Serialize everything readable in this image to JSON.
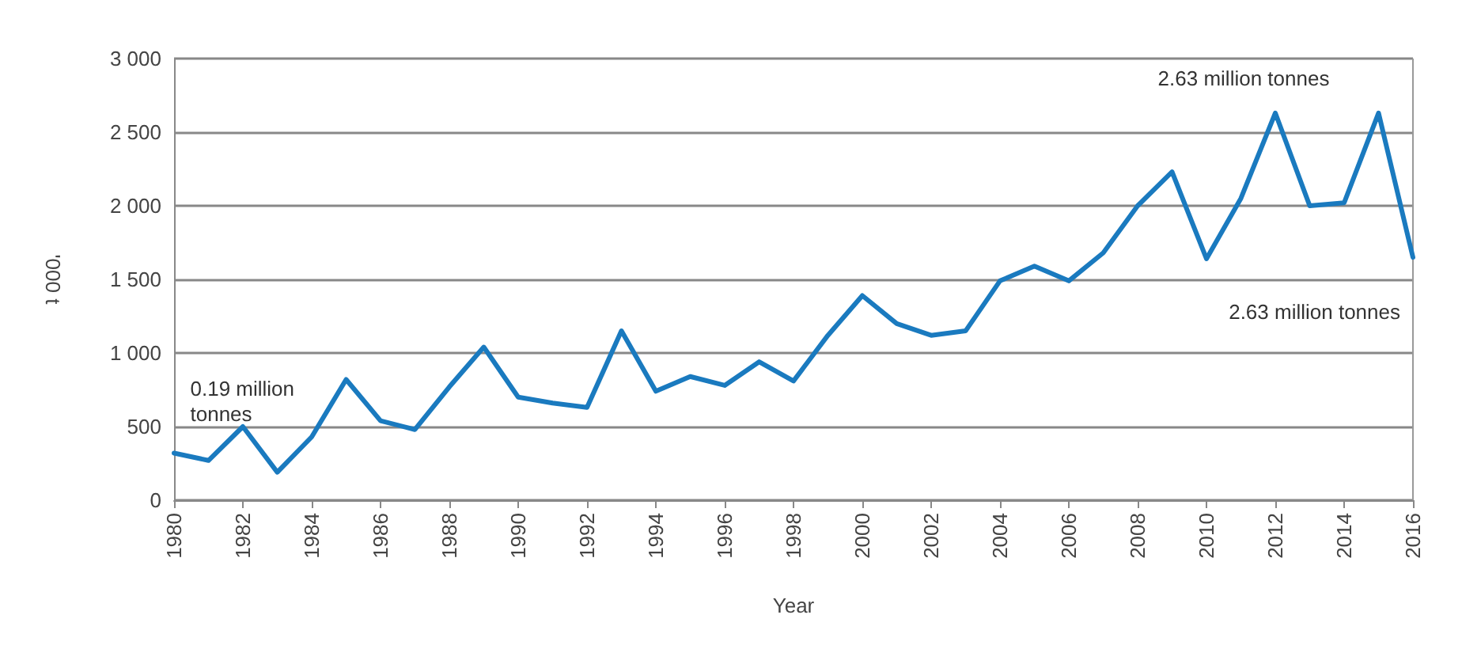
{
  "chart_data": {
    "type": "line",
    "xlabel": "Year",
    "ylabel": "'000 t",
    "x": [
      1980,
      1981,
      1982,
      1983,
      1984,
      1985,
      1986,
      1987,
      1988,
      1989,
      1990,
      1991,
      1992,
      1993,
      1994,
      1995,
      1996,
      1997,
      1998,
      1999,
      2000,
      2001,
      2002,
      2003,
      2004,
      2005,
      2006,
      2007,
      2008,
      2009,
      2010,
      2011,
      2012,
      2013,
      2014,
      2015,
      2016
    ],
    "series": [
      {
        "color": "#1a7abf",
        "values": [
          320,
          270,
          500,
          190,
          430,
          820,
          540,
          480,
          770,
          1040,
          700,
          660,
          630,
          1150,
          740,
          840,
          780,
          940,
          810,
          1120,
          1390,
          1200,
          1120,
          1150,
          1490,
          1590,
          1490,
          1680,
          2000,
          2230,
          1640,
          2050,
          2630,
          2000,
          2020,
          2630,
          1650
        ]
      }
    ],
    "xlim": [
      1980,
      2016
    ],
    "xticks": [
      1980,
      1982,
      1984,
      1986,
      1988,
      1990,
      1992,
      1994,
      1996,
      1998,
      2000,
      2002,
      2004,
      2006,
      2008,
      2010,
      2012,
      2014,
      2016
    ],
    "ylim": [
      0,
      3000
    ],
    "yticks": [
      {
        "value": 0,
        "label": "0"
      },
      {
        "value": 500,
        "label": "500"
      },
      {
        "value": 1000,
        "label": "1 000"
      },
      {
        "value": 1500,
        "label": "1 500"
      },
      {
        "value": 2000,
        "label": "2 000"
      },
      {
        "value": 2500,
        "label": "2 500"
      },
      {
        "value": 3000,
        "label": "3 000"
      }
    ],
    "annotations": [
      {
        "text": "0.19 million\ntonnes",
        "x": 1983,
        "y": 190
      },
      {
        "text": "2.63 million tonnes",
        "x": 2012,
        "y": 2630
      },
      "2.63 million tonnes"
    ],
    "grid": "y",
    "marker": "none",
    "line_style": "solid"
  }
}
